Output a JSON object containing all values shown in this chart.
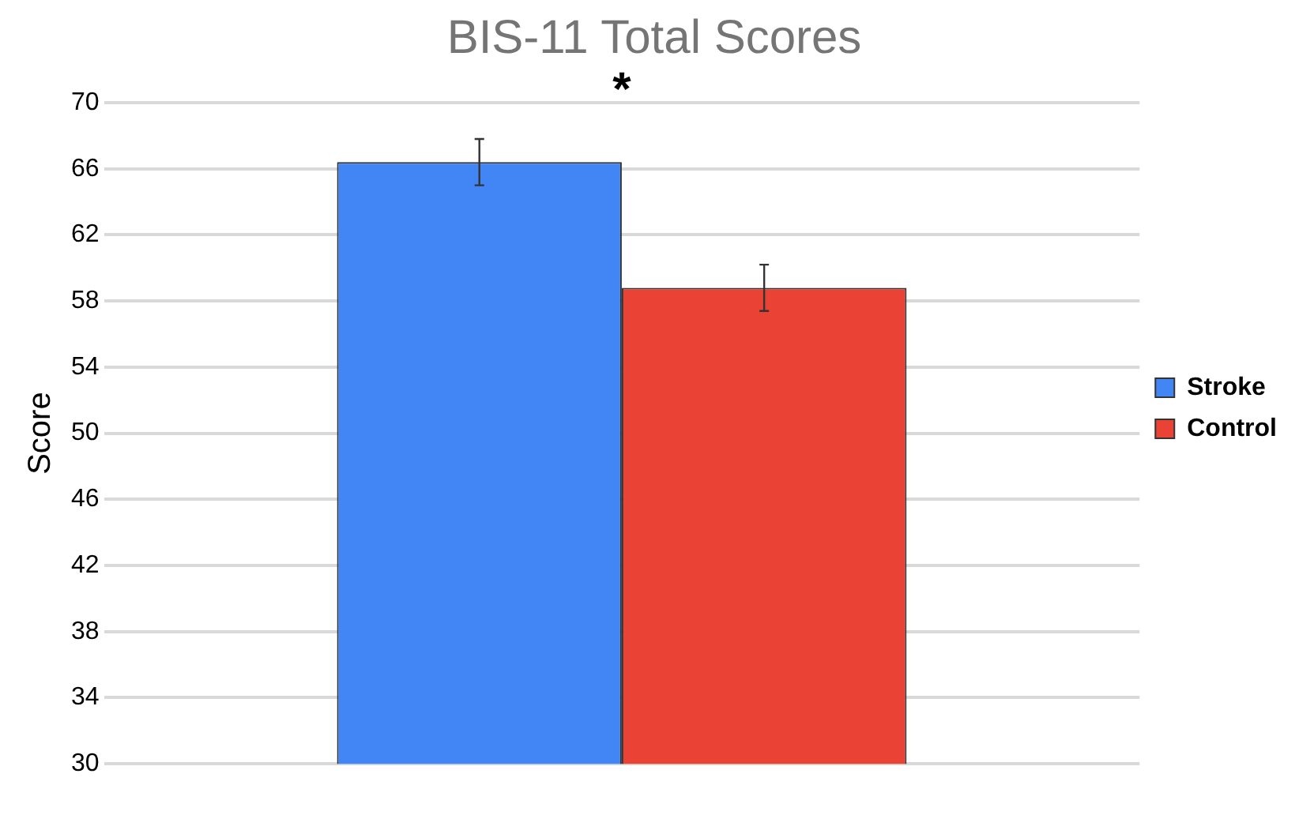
{
  "chart_data": {
    "type": "bar",
    "title": "BIS-11 Total Scores",
    "ylabel": "Score",
    "categories": [
      null
    ],
    "series": [
      {
        "name": "Stroke",
        "color": "#4285f4",
        "values": [
          66.4
        ],
        "errors": [
          1.4
        ]
      },
      {
        "name": "Control",
        "color": "#ea4335",
        "values": [
          58.8
        ],
        "errors": [
          1.4
        ]
      }
    ],
    "ylim": [
      30,
      70
    ],
    "yticks": [
      30,
      34,
      38,
      42,
      46,
      50,
      54,
      58,
      62,
      66,
      70
    ],
    "grid": "y",
    "legend": "right",
    "annotations": [
      "*"
    ]
  }
}
